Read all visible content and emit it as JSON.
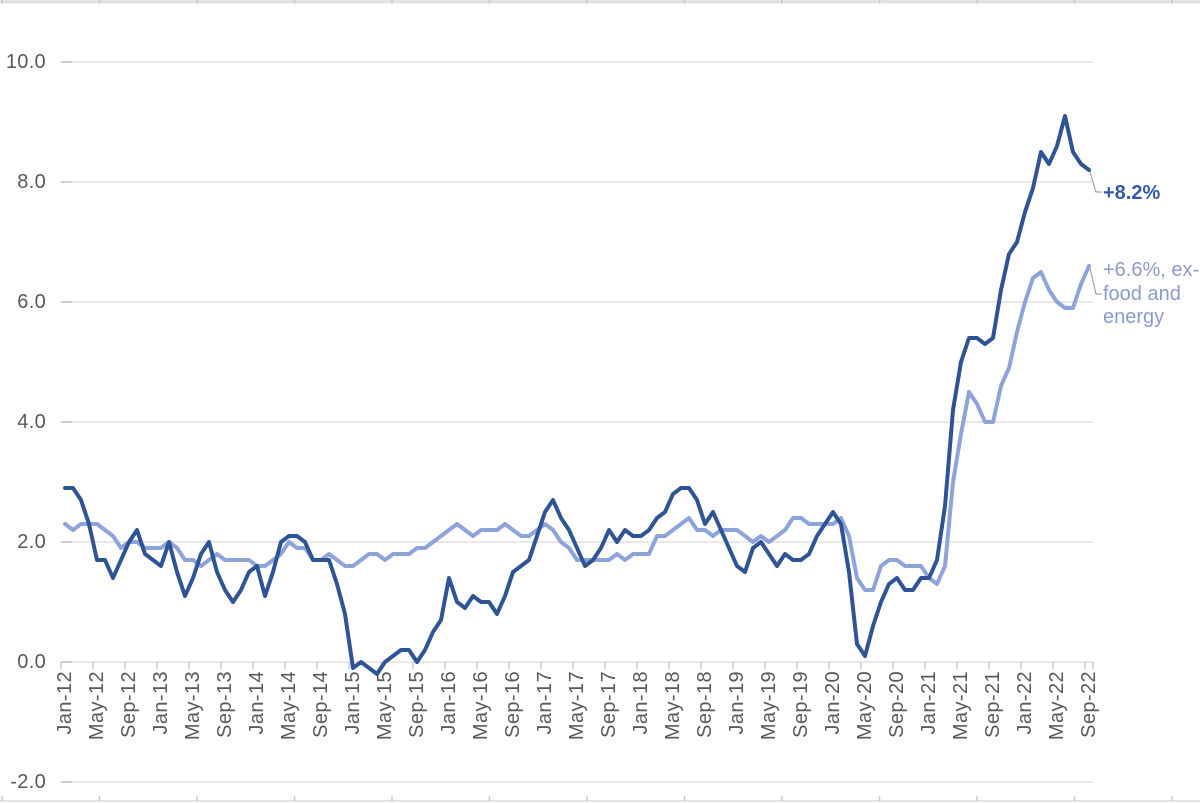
{
  "chart_data": {
    "type": "line",
    "title": "",
    "legend": "none",
    "grid": "horizontal",
    "x_frequency": "monthly",
    "x_range": [
      "Jan-12",
      "Sep-22"
    ],
    "x_tick_interval_months": 4,
    "x_tick_labels": [
      "Jan-12",
      "May-12",
      "Sep-12",
      "Jan-13",
      "May-13",
      "Sep-13",
      "Jan-14",
      "May-14",
      "Sep-14",
      "Jan-15",
      "May-15",
      "Sep-15",
      "Jan-16",
      "May-16",
      "Sep-16",
      "Jan-17",
      "May-17",
      "Sep-17",
      "Jan-18",
      "May-18",
      "Sep-18",
      "Jan-19",
      "May-19",
      "Sep-19",
      "Jan-20",
      "May-20",
      "Sep-20",
      "Jan-21",
      "May-21",
      "Sep-21",
      "Jan-22",
      "May-22",
      "Sep-22"
    ],
    "y_tick_labels": [
      "10.0",
      "8.0",
      "6.0",
      "4.0",
      "2.0",
      "0.0",
      "-2.0"
    ],
    "y_tick_values": [
      10,
      8,
      6,
      4,
      2,
      0,
      -2
    ],
    "ylim": [
      -2,
      10
    ],
    "series": [
      {
        "id": "cpi-all-items",
        "end_label": "+8.2%",
        "end_value": 8.2,
        "color": "#2F5496",
        "label_color": "#3558A8",
        "values": [
          2.9,
          2.9,
          2.7,
          2.3,
          1.7,
          1.7,
          1.4,
          1.7,
          2.0,
          2.2,
          1.8,
          1.7,
          1.6,
          2.0,
          1.5,
          1.1,
          1.4,
          1.8,
          2.0,
          1.5,
          1.2,
          1.0,
          1.2,
          1.5,
          1.6,
          1.1,
          1.5,
          2.0,
          2.1,
          2.1,
          2.0,
          1.7,
          1.7,
          1.7,
          1.3,
          0.8,
          -0.1,
          0.0,
          -0.1,
          -0.2,
          0.0,
          0.1,
          0.2,
          0.2,
          0.0,
          0.2,
          0.5,
          0.7,
          1.4,
          1.0,
          0.9,
          1.1,
          1.0,
          1.0,
          0.8,
          1.1,
          1.5,
          1.6,
          1.7,
          2.1,
          2.5,
          2.7,
          2.4,
          2.2,
          1.9,
          1.6,
          1.7,
          1.9,
          2.2,
          2.0,
          2.2,
          2.1,
          2.1,
          2.2,
          2.4,
          2.5,
          2.8,
          2.9,
          2.9,
          2.7,
          2.3,
          2.5,
          2.2,
          1.9,
          1.6,
          1.5,
          1.9,
          2.0,
          1.8,
          1.6,
          1.8,
          1.7,
          1.7,
          1.8,
          2.1,
          2.3,
          2.5,
          2.3,
          1.5,
          0.3,
          0.1,
          0.6,
          1.0,
          1.3,
          1.4,
          1.2,
          1.2,
          1.4,
          1.4,
          1.7,
          2.6,
          4.2,
          5.0,
          5.4,
          5.4,
          5.3,
          5.4,
          6.2,
          6.8,
          7.0,
          7.5,
          7.9,
          8.5,
          8.3,
          8.6,
          9.1,
          8.5,
          8.3,
          8.2
        ]
      },
      {
        "id": "cpi-ex-food-and-energy",
        "end_label": "+6.6%, ex-\nfood and\nenergy",
        "end_label_plain": "+6.6%, ex-food and energy",
        "end_value": 6.6,
        "color": "#8FA3DB",
        "label_color": "#8A9BCC",
        "values": [
          2.3,
          2.2,
          2.3,
          2.3,
          2.3,
          2.2,
          2.1,
          1.9,
          2.0,
          2.0,
          1.9,
          1.9,
          1.9,
          2.0,
          1.9,
          1.7,
          1.7,
          1.6,
          1.7,
          1.8,
          1.7,
          1.7,
          1.7,
          1.7,
          1.6,
          1.6,
          1.7,
          1.8,
          2.0,
          1.9,
          1.9,
          1.7,
          1.7,
          1.8,
          1.7,
          1.6,
          1.6,
          1.7,
          1.8,
          1.8,
          1.7,
          1.8,
          1.8,
          1.8,
          1.9,
          1.9,
          2.0,
          2.1,
          2.2,
          2.3,
          2.2,
          2.1,
          2.2,
          2.2,
          2.2,
          2.3,
          2.2,
          2.1,
          2.1,
          2.2,
          2.3,
          2.2,
          2.0,
          1.9,
          1.7,
          1.7,
          1.7,
          1.7,
          1.7,
          1.8,
          1.7,
          1.8,
          1.8,
          1.8,
          2.1,
          2.1,
          2.2,
          2.3,
          2.4,
          2.2,
          2.2,
          2.1,
          2.2,
          2.2,
          2.2,
          2.1,
          2.0,
          2.1,
          2.0,
          2.1,
          2.2,
          2.4,
          2.4,
          2.3,
          2.3,
          2.3,
          2.3,
          2.4,
          2.1,
          1.4,
          1.2,
          1.2,
          1.6,
          1.7,
          1.7,
          1.6,
          1.6,
          1.6,
          1.4,
          1.3,
          1.6,
          3.0,
          3.8,
          4.5,
          4.3,
          4.0,
          4.0,
          4.6,
          4.9,
          5.5,
          6.0,
          6.4,
          6.5,
          6.2,
          6.0,
          5.9,
          5.9,
          6.3,
          6.6
        ]
      }
    ]
  },
  "axis_style": {
    "label_color": "#595959",
    "grid_color": "#D9D9D9",
    "tick_color": "#BFBFBF",
    "leader_color": "#A6A6A6",
    "sheet_line_color": "#E3E3E3",
    "sheet_tick_color": "#C9C9C9"
  }
}
